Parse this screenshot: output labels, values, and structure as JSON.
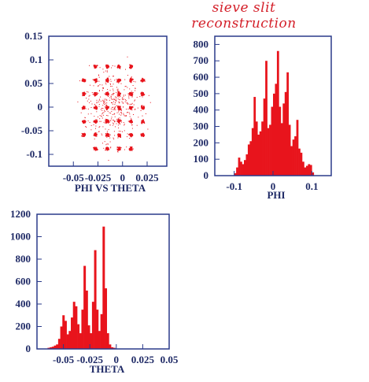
{
  "header": {
    "title": "sieve slit reconstruction"
  },
  "colors": {
    "marks": "#e8141c",
    "frame": "#2a3a8a",
    "text": "#1f2a66",
    "handwriting": "#d4202a"
  },
  "chart_data": [
    {
      "type": "scatter",
      "title": "",
      "xlabel": "PHI VS THETA",
      "ylabel": "",
      "xlim": [
        -0.075,
        0.045
      ],
      "ylim": [
        -0.125,
        0.15
      ],
      "xticks": [
        "-0.05",
        "-0.025",
        "0",
        "0.025"
      ],
      "yticks": [
        "0.15",
        "0.1",
        "0.05",
        "0",
        "-0.05",
        "-0.1"
      ],
      "grid": false,
      "clusters_theta": [
        -0.04,
        -0.028,
        -0.016,
        -0.004,
        0.008,
        0.02
      ],
      "clusters_phi": [
        -0.087,
        -0.058,
        -0.029,
        0.0,
        0.029,
        0.058,
        0.087
      ]
    },
    {
      "type": "bar",
      "title": "",
      "xlabel": "PHI",
      "ylabel": "",
      "xlim": [
        -0.15,
        0.15
      ],
      "ylim": [
        0,
        850
      ],
      "xticks": [
        "-0.1",
        "0",
        "0.1"
      ],
      "yticks": [
        "800",
        "700",
        "600",
        "500",
        "400",
        "300",
        "200",
        "100",
        "0"
      ],
      "bin_start": -0.1,
      "bin_width": 0.005,
      "values": [
        15,
        50,
        110,
        85,
        70,
        95,
        130,
        190,
        210,
        290,
        480,
        330,
        250,
        270,
        330,
        470,
        700,
        290,
        310,
        420,
        500,
        560,
        760,
        420,
        320,
        440,
        510,
        630,
        310,
        180,
        220,
        240,
        340,
        165,
        140,
        85,
        50,
        60,
        70,
        65,
        20
      ]
    },
    {
      "type": "bar",
      "title": "",
      "xlabel": "THETA",
      "ylabel": "",
      "xlim": [
        -0.075,
        0.05
      ],
      "ylim": [
        0,
        1200
      ],
      "xticks": [
        "-0.05",
        "-0.025",
        "0",
        "0.025",
        "0.05"
      ],
      "yticks": [
        "1200",
        "1000",
        "800",
        "600",
        "400",
        "200",
        "0"
      ],
      "bin_start": -0.065,
      "bin_width": 0.002,
      "values": [
        10,
        15,
        20,
        30,
        40,
        90,
        200,
        300,
        250,
        130,
        160,
        280,
        420,
        380,
        220,
        140,
        350,
        740,
        520,
        210,
        140,
        420,
        880,
        350,
        160,
        310,
        1090,
        540,
        140,
        40,
        15,
        10
      ]
    }
  ]
}
